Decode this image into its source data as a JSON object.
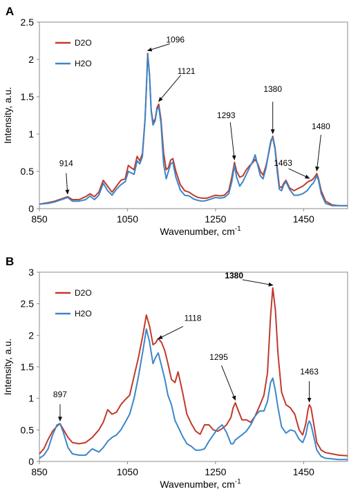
{
  "chart_data": [
    {
      "type": "line",
      "panel_label": "A",
      "xlabel": "Wavenumber, cm",
      "xlabel_sup": "-1",
      "ylabel": "Intensity, a.u.",
      "xlim": [
        850,
        1550
      ],
      "ylim": [
        0,
        2.5
      ],
      "xticks": [
        850,
        1050,
        1250,
        1450
      ],
      "yticks": [
        0,
        0.5,
        1,
        1.5,
        2,
        2.5
      ],
      "ytick_labels": [
        "0",
        "0.5",
        "1",
        "1.5",
        "2",
        "2.5"
      ],
      "grid": false,
      "legend_position": "top-left",
      "series": [
        {
          "name": "D2O",
          "color": "#c0392b",
          "x": [
            850,
            870,
            885,
            895,
            905,
            914,
            925,
            940,
            955,
            965,
            975,
            985,
            995,
            1005,
            1015,
            1025,
            1035,
            1045,
            1052,
            1058,
            1065,
            1072,
            1078,
            1084,
            1090,
            1093,
            1096,
            1100,
            1104,
            1108,
            1113,
            1117,
            1121,
            1126,
            1132,
            1138,
            1143,
            1148,
            1153,
            1160,
            1170,
            1180,
            1190,
            1200,
            1210,
            1220,
            1230,
            1240,
            1250,
            1260,
            1270,
            1280,
            1287,
            1293,
            1298,
            1305,
            1312,
            1320,
            1328,
            1335,
            1340,
            1346,
            1352,
            1358,
            1365,
            1372,
            1376,
            1380,
            1385,
            1390,
            1395,
            1400,
            1405,
            1410,
            1418,
            1428,
            1438,
            1448,
            1458,
            1463,
            1468,
            1472,
            1477,
            1480,
            1484,
            1490,
            1500,
            1515,
            1530,
            1550
          ],
          "y": [
            0.06,
            0.08,
            0.1,
            0.12,
            0.14,
            0.16,
            0.12,
            0.12,
            0.16,
            0.2,
            0.16,
            0.22,
            0.38,
            0.3,
            0.22,
            0.3,
            0.38,
            0.4,
            0.58,
            0.55,
            0.52,
            0.7,
            0.64,
            0.74,
            1.2,
            1.6,
            2.08,
            1.8,
            1.32,
            1.16,
            1.2,
            1.35,
            1.4,
            1.2,
            0.75,
            0.52,
            0.55,
            0.65,
            0.67,
            0.5,
            0.32,
            0.24,
            0.22,
            0.18,
            0.15,
            0.14,
            0.14,
            0.16,
            0.18,
            0.17,
            0.18,
            0.24,
            0.42,
            0.62,
            0.5,
            0.42,
            0.44,
            0.52,
            0.58,
            0.62,
            0.66,
            0.6,
            0.5,
            0.45,
            0.58,
            0.78,
            0.9,
            0.97,
            0.82,
            0.55,
            0.3,
            0.28,
            0.34,
            0.38,
            0.28,
            0.24,
            0.27,
            0.3,
            0.35,
            0.37,
            0.38,
            0.4,
            0.44,
            0.47,
            0.4,
            0.24,
            0.1,
            0.05,
            0.04,
            0.04
          ]
        },
        {
          "name": "H2O",
          "color": "#3a86c8",
          "x": [
            850,
            870,
            885,
            895,
            905,
            914,
            925,
            940,
            955,
            965,
            975,
            985,
            995,
            1005,
            1015,
            1025,
            1035,
            1045,
            1052,
            1058,
            1065,
            1072,
            1078,
            1084,
            1090,
            1093,
            1096,
            1100,
            1104,
            1108,
            1113,
            1117,
            1121,
            1126,
            1132,
            1138,
            1143,
            1148,
            1153,
            1160,
            1170,
            1180,
            1190,
            1200,
            1210,
            1220,
            1230,
            1240,
            1250,
            1260,
            1270,
            1280,
            1287,
            1293,
            1298,
            1305,
            1312,
            1320,
            1328,
            1335,
            1340,
            1346,
            1352,
            1358,
            1365,
            1372,
            1376,
            1380,
            1385,
            1390,
            1395,
            1400,
            1405,
            1410,
            1418,
            1428,
            1438,
            1448,
            1458,
            1463,
            1468,
            1472,
            1477,
            1480,
            1484,
            1490,
            1500,
            1515,
            1530,
            1550
          ],
          "y": [
            0.06,
            0.07,
            0.09,
            0.11,
            0.13,
            0.15,
            0.1,
            0.1,
            0.12,
            0.17,
            0.12,
            0.18,
            0.34,
            0.24,
            0.18,
            0.26,
            0.32,
            0.36,
            0.5,
            0.48,
            0.46,
            0.64,
            0.6,
            0.7,
            1.2,
            1.62,
            2.06,
            1.8,
            1.3,
            1.12,
            1.18,
            1.33,
            1.36,
            1.15,
            0.6,
            0.4,
            0.5,
            0.6,
            0.62,
            0.42,
            0.25,
            0.18,
            0.17,
            0.13,
            0.11,
            0.1,
            0.11,
            0.13,
            0.15,
            0.14,
            0.15,
            0.2,
            0.36,
            0.58,
            0.42,
            0.3,
            0.36,
            0.46,
            0.56,
            0.64,
            0.72,
            0.58,
            0.44,
            0.4,
            0.55,
            0.8,
            0.92,
            0.95,
            0.8,
            0.5,
            0.26,
            0.24,
            0.32,
            0.36,
            0.26,
            0.18,
            0.18,
            0.2,
            0.24,
            0.28,
            0.32,
            0.34,
            0.4,
            0.44,
            0.38,
            0.2,
            0.07,
            0.04,
            0.04,
            0.04
          ]
        }
      ],
      "annotations": [
        {
          "text": "914",
          "x": 914,
          "y": 0.16
        },
        {
          "text": "1096",
          "x": 1096,
          "y": 2.08
        },
        {
          "text": "1121",
          "x": 1121,
          "y": 1.4
        },
        {
          "text": "1293",
          "x": 1293,
          "y": 0.62
        },
        {
          "text": "1380",
          "x": 1380,
          "y": 0.97
        },
        {
          "text": "1463",
          "x": 1463,
          "y": 0.37
        },
        {
          "text": "1480",
          "x": 1480,
          "y": 0.47
        }
      ]
    },
    {
      "type": "line",
      "panel_label": "B",
      "xlabel": "Wavenumber, cm",
      "xlabel_sup": "-1",
      "ylabel": "Intensity, a.u.",
      "xlim": [
        850,
        1550
      ],
      "ylim": [
        0,
        3
      ],
      "xticks": [
        850,
        1050,
        1250,
        1450
      ],
      "yticks": [
        0,
        0.5,
        1,
        1.5,
        2,
        2.5,
        3
      ],
      "ytick_labels": [
        "0",
        "0.5",
        "1",
        "1.5",
        "2",
        "2.5",
        "3"
      ],
      "grid": false,
      "legend_position": "top-left",
      "series": [
        {
          "name": "D2O",
          "color": "#c0392b",
          "x": [
            850,
            860,
            870,
            880,
            890,
            897,
            905,
            915,
            925,
            940,
            955,
            970,
            985,
            995,
            1005,
            1015,
            1025,
            1035,
            1045,
            1055,
            1065,
            1075,
            1085,
            1093,
            1100,
            1108,
            1114,
            1120,
            1128,
            1135,
            1142,
            1150,
            1158,
            1165,
            1175,
            1185,
            1195,
            1205,
            1215,
            1225,
            1235,
            1245,
            1255,
            1265,
            1275,
            1285,
            1290,
            1295,
            1302,
            1310,
            1320,
            1330,
            1340,
            1350,
            1360,
            1368,
            1375,
            1380,
            1386,
            1392,
            1400,
            1410,
            1420,
            1430,
            1440,
            1448,
            1455,
            1460,
            1463,
            1467,
            1473,
            1480,
            1490,
            1500,
            1515,
            1530,
            1550
          ],
          "y": [
            0.12,
            0.2,
            0.35,
            0.48,
            0.56,
            0.6,
            0.5,
            0.38,
            0.3,
            0.28,
            0.3,
            0.38,
            0.5,
            0.62,
            0.82,
            0.75,
            0.78,
            0.9,
            0.98,
            1.05,
            1.35,
            1.65,
            2.0,
            2.32,
            2.15,
            1.85,
            1.88,
            1.95,
            1.88,
            1.75,
            1.55,
            1.3,
            1.25,
            1.42,
            1.1,
            0.75,
            0.6,
            0.48,
            0.43,
            0.58,
            0.58,
            0.5,
            0.48,
            0.52,
            0.58,
            0.7,
            0.85,
            0.93,
            0.8,
            0.66,
            0.66,
            0.62,
            0.72,
            0.88,
            1.05,
            1.4,
            2.3,
            2.75,
            2.4,
            1.7,
            1.1,
            0.9,
            0.85,
            0.75,
            0.5,
            0.42,
            0.6,
            0.82,
            0.9,
            0.85,
            0.6,
            0.3,
            0.18,
            0.14,
            0.12,
            0.1,
            0.09
          ]
        },
        {
          "name": "H2O",
          "color": "#3a86c8",
          "x": [
            850,
            860,
            870,
            880,
            890,
            897,
            905,
            915,
            925,
            940,
            955,
            970,
            985,
            995,
            1005,
            1015,
            1025,
            1035,
            1045,
            1055,
            1065,
            1075,
            1085,
            1093,
            1100,
            1108,
            1114,
            1120,
            1128,
            1135,
            1142,
            1150,
            1158,
            1165,
            1175,
            1185,
            1195,
            1205,
            1215,
            1225,
            1235,
            1245,
            1255,
            1265,
            1275,
            1285,
            1290,
            1295,
            1302,
            1310,
            1320,
            1330,
            1340,
            1350,
            1360,
            1368,
            1375,
            1380,
            1386,
            1392,
            1400,
            1410,
            1420,
            1430,
            1440,
            1448,
            1455,
            1460,
            1463,
            1467,
            1473,
            1480,
            1490,
            1500,
            1515,
            1530,
            1550
          ],
          "y": [
            0.05,
            0.1,
            0.2,
            0.42,
            0.58,
            0.6,
            0.45,
            0.22,
            0.12,
            0.1,
            0.1,
            0.2,
            0.15,
            0.22,
            0.32,
            0.38,
            0.42,
            0.5,
            0.62,
            0.75,
            1.0,
            1.35,
            1.75,
            2.1,
            1.9,
            1.55,
            1.65,
            1.72,
            1.5,
            1.3,
            1.05,
            0.9,
            0.65,
            0.55,
            0.4,
            0.28,
            0.24,
            0.18,
            0.18,
            0.2,
            0.32,
            0.42,
            0.52,
            0.58,
            0.46,
            0.28,
            0.28,
            0.34,
            0.38,
            0.42,
            0.48,
            0.58,
            0.72,
            0.8,
            0.8,
            0.95,
            1.25,
            1.32,
            1.12,
            0.85,
            0.55,
            0.45,
            0.5,
            0.48,
            0.35,
            0.3,
            0.42,
            0.6,
            0.64,
            0.58,
            0.4,
            0.18,
            0.08,
            0.05,
            0.04,
            0.03,
            0.03
          ]
        }
      ],
      "annotations": [
        {
          "text": "897",
          "x": 897,
          "y": 0.6,
          "bold": false
        },
        {
          "text": "1118",
          "x": 1120,
          "y": 1.9,
          "bold": false
        },
        {
          "text": "1295",
          "x": 1295,
          "y": 0.93,
          "bold": false
        },
        {
          "text": "1380",
          "x": 1380,
          "y": 2.75,
          "bold": true
        },
        {
          "text": "1463",
          "x": 1463,
          "y": 0.9,
          "bold": false
        }
      ]
    }
  ]
}
